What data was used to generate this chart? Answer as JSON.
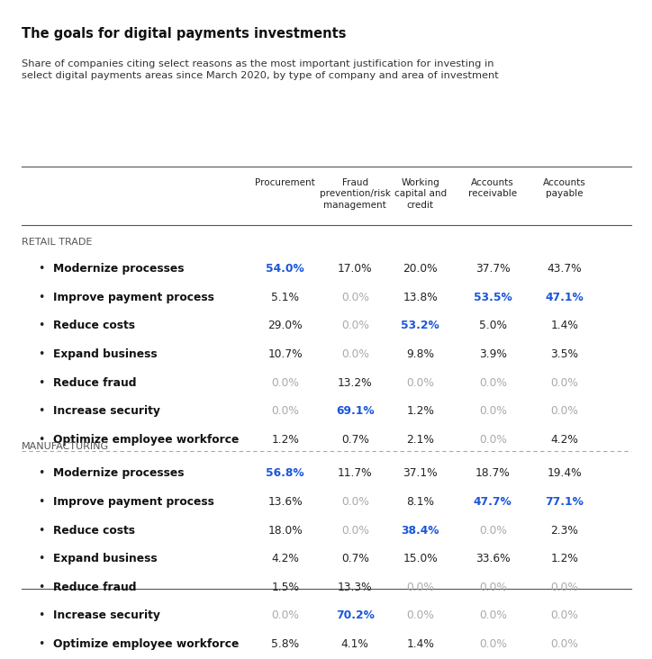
{
  "title": "The goals for digital payments investments",
  "subtitle": "Share of companies citing select reasons as the most important justification for investing in\nselect digital payments areas since March 2020, by type of company and area of investment",
  "col_headers": [
    "Procurement",
    "Fraud\nprevention/risk\nmanagement",
    "Working\ncapital and\ncredit",
    "Accounts\nreceivable",
    "Accounts\npayable"
  ],
  "sections": [
    {
      "name": "RETAIL TRADE",
      "rows": [
        {
          "label": "Modernize processes",
          "values": [
            "54.0%",
            "17.0%",
            "20.0%",
            "37.7%",
            "43.7%"
          ],
          "highlights": [
            0
          ]
        },
        {
          "label": "Improve payment process",
          "values": [
            "5.1%",
            "0.0%",
            "13.8%",
            "53.5%",
            "47.1%"
          ],
          "highlights": [
            3,
            4
          ]
        },
        {
          "label": "Reduce costs",
          "values": [
            "29.0%",
            "0.0%",
            "53.2%",
            "5.0%",
            "1.4%"
          ],
          "highlights": [
            2
          ]
        },
        {
          "label": "Expand business",
          "values": [
            "10.7%",
            "0.0%",
            "9.8%",
            "3.9%",
            "3.5%"
          ],
          "highlights": []
        },
        {
          "label": "Reduce fraud",
          "values": [
            "0.0%",
            "13.2%",
            "0.0%",
            "0.0%",
            "0.0%"
          ],
          "highlights": []
        },
        {
          "label": "Increase security",
          "values": [
            "0.0%",
            "69.1%",
            "1.2%",
            "0.0%",
            "0.0%"
          ],
          "highlights": [
            1
          ]
        },
        {
          "label": "Optimize employee workforce",
          "values": [
            "1.2%",
            "0.7%",
            "2.1%",
            "0.0%",
            "4.2%"
          ],
          "highlights": []
        }
      ]
    },
    {
      "name": "MANUFACTURING",
      "rows": [
        {
          "label": "Modernize processes",
          "values": [
            "56.8%",
            "11.7%",
            "37.1%",
            "18.7%",
            "19.4%"
          ],
          "highlights": [
            0
          ]
        },
        {
          "label": "Improve payment process",
          "values": [
            "13.6%",
            "0.0%",
            "8.1%",
            "47.7%",
            "77.1%"
          ],
          "highlights": [
            3,
            4
          ]
        },
        {
          "label": "Reduce costs",
          "values": [
            "18.0%",
            "0.0%",
            "38.4%",
            "0.0%",
            "2.3%"
          ],
          "highlights": [
            2
          ]
        },
        {
          "label": "Expand business",
          "values": [
            "4.2%",
            "0.7%",
            "15.0%",
            "33.6%",
            "1.2%"
          ],
          "highlights": []
        },
        {
          "label": "Reduce fraud",
          "values": [
            "1.5%",
            "13.3%",
            "0.0%",
            "0.0%",
            "0.0%"
          ],
          "highlights": []
        },
        {
          "label": "Increase security",
          "values": [
            "0.0%",
            "70.2%",
            "0.0%",
            "0.0%",
            "0.0%"
          ],
          "highlights": [
            1
          ]
        },
        {
          "label": "Optimize employee workforce",
          "values": [
            "5.8%",
            "4.1%",
            "1.4%",
            "0.0%",
            "0.0%"
          ],
          "highlights": []
        }
      ]
    }
  ],
  "blue_color": "#1a56db",
  "gray_color": "#aaaaaa",
  "dark_color": "#222222",
  "bg_color": "#ffffff"
}
